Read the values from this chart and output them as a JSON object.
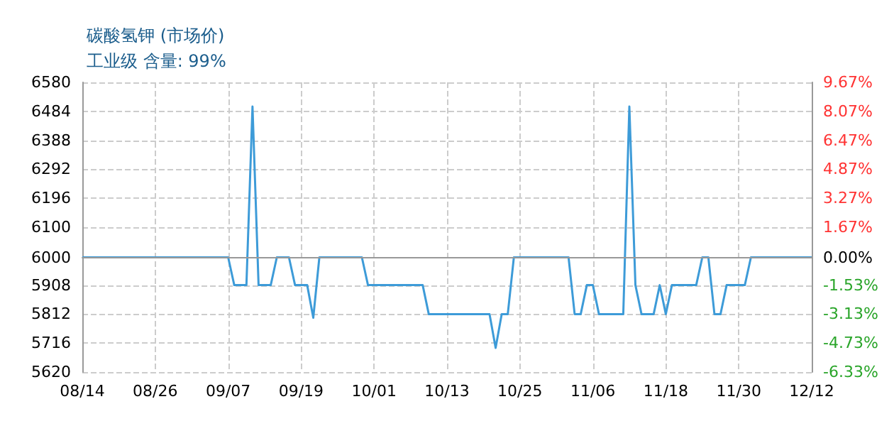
{
  "chart_data": {
    "type": "line",
    "title": "碳酸氢钾 (市场价)",
    "subtitle": "工业级 含量: 99%",
    "x": [
      "--08-14",
      "--09-07",
      "--09-08",
      "--09-10",
      "--09-11",
      "--09-12",
      "--09-14",
      "--09-15",
      "--09-17",
      "--09-18",
      "--09-20",
      "--09-21",
      "--09-22",
      "--09-29",
      "--09-30",
      "--10-09",
      "--10-10",
      "--10-20",
      "--10-21",
      "--10-22",
      "--10-23",
      "--10-24",
      "--11-02",
      "--11-03",
      "--11-04",
      "--11-05",
      "--11-06",
      "--11-07",
      "--11-11",
      "--11-12",
      "--11-13",
      "--11-14",
      "--11-16",
      "--11-17",
      "--11-18",
      "--11-19",
      "--11-23",
      "--11-24",
      "--11-25",
      "--11-26",
      "--11-27",
      "--11-28",
      "--12-01",
      "--12-02",
      "--12-12"
    ],
    "series": [
      {
        "color": "#3d9bd8",
        "values": [
          6000,
          6000,
          5908,
          5908,
          6500,
          5908,
          5908,
          6000,
          6000,
          5908,
          5908,
          5800,
          6000,
          6000,
          5908,
          5908,
          5812,
          5812,
          5700,
          5812,
          5812,
          6000,
          6000,
          5812,
          5812,
          5908,
          5908,
          5812,
          5812,
          6500,
          5908,
          5812,
          5812,
          5908,
          5812,
          5908,
          5908,
          6000,
          6000,
          5812,
          5812,
          5908,
          5908,
          6000,
          6000
        ]
      }
    ],
    "xlim": [
      "--08-14",
      "--12-12"
    ],
    "xticks": [
      {
        "value": "--08-14",
        "label": "08/14"
      },
      {
        "value": "--08-26",
        "label": "08/26"
      },
      {
        "value": "--09-07",
        "label": "09/07"
      },
      {
        "value": "--09-19",
        "label": "09/19"
      },
      {
        "value": "--10-01",
        "label": "10/01"
      },
      {
        "value": "--10-13",
        "label": "10/13"
      },
      {
        "value": "--10-25",
        "label": "10/25"
      },
      {
        "value": "--11-06",
        "label": "11/06"
      },
      {
        "value": "--11-18",
        "label": "11/18"
      },
      {
        "value": "--11-30",
        "label": "11/30"
      },
      {
        "value": "--12-12",
        "label": "12/12"
      }
    ],
    "ylim": [
      5620,
      6580
    ],
    "yticks": [
      5620,
      5716,
      5812,
      5908,
      6000,
      6100,
      6196,
      6292,
      6388,
      6484,
      6580
    ],
    "y2lim": [
      -6.33,
      9.67
    ],
    "y2ticks": [
      {
        "value": -6.33,
        "label": "-6.33%"
      },
      {
        "value": -4.73,
        "label": "-4.73%"
      },
      {
        "value": -3.13,
        "label": "-3.13%"
      },
      {
        "value": -1.53,
        "label": "-1.53%"
      },
      {
        "value": 0,
        "label": "0.00%"
      },
      {
        "value": 1.67,
        "label": "1.67%"
      },
      {
        "value": 3.27,
        "label": "3.27%"
      },
      {
        "value": 4.87,
        "label": "4.87%"
      },
      {
        "value": 6.47,
        "label": "6.47%"
      },
      {
        "value": 8.07,
        "label": "8.07%"
      },
      {
        "value": 9.67,
        "label": "9.67%"
      }
    ],
    "grid": true,
    "marker": "none",
    "line_style": "solid"
  }
}
